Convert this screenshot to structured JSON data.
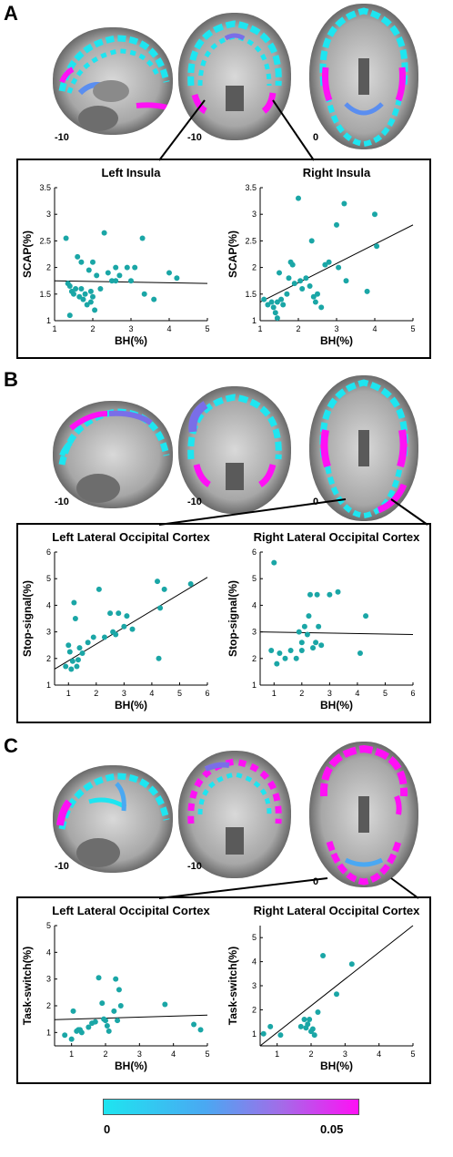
{
  "colors": {
    "point": "#1aa6a6",
    "cyan": "#1ee5f0",
    "magenta": "#ff10f5",
    "blue": "#5a8ef0"
  },
  "colorbar": {
    "min_label": "0",
    "max_label": "0.05"
  },
  "panels": [
    {
      "letter": "A",
      "slice_labels": [
        "-10",
        "-10",
        "0"
      ],
      "plots": [
        {
          "title": "Left Insula",
          "xlabel": "BH(%)",
          "ylabel": "SCAP(%)"
        },
        {
          "title": "Right Insula",
          "xlabel": "BH(%)",
          "ylabel": "SCAP(%)"
        }
      ]
    },
    {
      "letter": "B",
      "slice_labels": [
        "-10",
        "-10",
        "0"
      ],
      "plots": [
        {
          "title": "Left Lateral Occipital Cortex",
          "xlabel": "BH(%)",
          "ylabel": "Stop-signal(%)"
        },
        {
          "title": "Right Lateral Occipital Cortex",
          "xlabel": "BH(%)",
          "ylabel": "Stop-signal(%)"
        }
      ]
    },
    {
      "letter": "C",
      "slice_labels": [
        "-10",
        "-10",
        "0"
      ],
      "plots": [
        {
          "title": "Left Lateral Occipital Cortex",
          "xlabel": "BH(%)",
          "ylabel": "Task-switch(%)"
        },
        {
          "title": "Right Lateral Occipital Cortex",
          "xlabel": "BH(%)",
          "ylabel": "Task-switch(%)"
        }
      ]
    }
  ],
  "chart_data": [
    {
      "type": "scatter",
      "title": "Left Insula",
      "xlabel": "BH(%)",
      "ylabel": "SCAP(%)",
      "xlim": [
        1,
        5
      ],
      "ylim": [
        1,
        3.5
      ],
      "xticks": [
        "1",
        "2",
        "3",
        "4",
        "5"
      ],
      "yticks": [
        "1",
        "1.5",
        "2",
        "2.5",
        "3",
        "3.5"
      ],
      "x": [
        1.3,
        1.35,
        1.4,
        1.45,
        1.5,
        1.55,
        1.6,
        1.65,
        1.7,
        1.75,
        1.8,
        1.85,
        1.9,
        1.95,
        2.0,
        2.0,
        2.05,
        2.1,
        2.2,
        2.3,
        2.4,
        2.5,
        2.6,
        2.7,
        2.9,
        3.0,
        3.1,
        3.3,
        3.35,
        3.6,
        4.0,
        4.2,
        1.4,
        1.7,
        2.6,
        1.95
      ],
      "y": [
        2.55,
        1.7,
        1.1,
        1.55,
        1.5,
        1.6,
        2.2,
        1.45,
        1.6,
        1.4,
        1.5,
        1.3,
        1.95,
        1.55,
        2.1,
        1.45,
        1.2,
        1.85,
        1.6,
        2.65,
        1.9,
        1.75,
        2.0,
        1.85,
        2.0,
        1.75,
        2.0,
        2.55,
        1.5,
        1.4,
        1.9,
        1.8,
        1.65,
        2.1,
        1.75,
        1.35
      ],
      "fit": {
        "x": [
          1,
          5
        ],
        "y": [
          1.75,
          1.7
        ]
      }
    },
    {
      "type": "scatter",
      "title": "Right Insula",
      "xlabel": "BH(%)",
      "ylabel": "SCAP(%)",
      "xlim": [
        1,
        5
      ],
      "ylim": [
        1,
        3.5
      ],
      "xticks": [
        "1",
        "2",
        "3",
        "4",
        "5"
      ],
      "yticks": [
        "1",
        "1.5",
        "2",
        "2.5",
        "3",
        "3.5"
      ],
      "x": [
        1.1,
        1.2,
        1.3,
        1.35,
        1.4,
        1.45,
        1.5,
        1.6,
        1.7,
        1.75,
        1.8,
        1.85,
        1.9,
        2.0,
        2.05,
        2.1,
        2.2,
        2.3,
        2.4,
        2.45,
        2.5,
        2.6,
        2.7,
        2.8,
        3.0,
        3.05,
        3.2,
        3.25,
        3.8,
        4.0,
        4.05,
        1.45,
        1.55,
        2.35
      ],
      "y": [
        1.4,
        1.3,
        1.35,
        1.25,
        1.15,
        1.05,
        1.9,
        1.3,
        1.5,
        1.8,
        2.1,
        2.05,
        1.7,
        3.3,
        1.75,
        1.6,
        1.8,
        1.65,
        1.45,
        1.35,
        1.5,
        1.25,
        2.05,
        2.1,
        2.8,
        2.0,
        3.2,
        1.75,
        1.55,
        3.0,
        2.4,
        1.35,
        1.4,
        2.5
      ],
      "fit": {
        "x": [
          1,
          5
        ],
        "y": [
          1.35,
          2.8
        ]
      }
    },
    {
      "type": "scatter",
      "title": "Left Lateral Occipital Cortex",
      "xlabel": "BH(%)",
      "ylabel": "Stop-signal(%)",
      "xlim": [
        0.5,
        6
      ],
      "ylim": [
        1,
        6
      ],
      "xticks": [
        "1",
        "2",
        "3",
        "4",
        "5",
        "6"
      ],
      "yticks": [
        "1",
        "2",
        "3",
        "4",
        "5",
        "6"
      ],
      "x": [
        0.9,
        1.0,
        1.1,
        1.15,
        1.2,
        1.25,
        1.3,
        1.35,
        1.4,
        1.5,
        1.7,
        1.9,
        2.1,
        2.3,
        2.5,
        2.6,
        2.7,
        2.8,
        3.0,
        3.1,
        3.3,
        4.2,
        4.25,
        4.3,
        4.45,
        5.4,
        1.05
      ],
      "y": [
        1.7,
        2.5,
        1.6,
        1.9,
        4.1,
        3.5,
        1.7,
        1.95,
        2.4,
        2.2,
        2.6,
        2.8,
        4.6,
        2.8,
        3.7,
        3.0,
        2.9,
        3.7,
        3.2,
        3.6,
        3.1,
        4.9,
        2.0,
        3.9,
        4.6,
        4.8,
        2.25
      ],
      "fit": {
        "x": [
          0.5,
          6
        ],
        "y": [
          1.6,
          5.05
        ]
      }
    },
    {
      "type": "scatter",
      "title": "Right Lateral Occipital Cortex",
      "xlabel": "BH(%)",
      "ylabel": "Stop-signal(%)",
      "xlim": [
        0.5,
        6
      ],
      "ylim": [
        1,
        6
      ],
      "xticks": [
        "1",
        "2",
        "3",
        "4",
        "5",
        "6"
      ],
      "yticks": [
        "1",
        "2",
        "3",
        "4",
        "5",
        "6"
      ],
      "x": [
        0.9,
        1.0,
        1.1,
        1.2,
        1.4,
        1.6,
        1.8,
        1.9,
        2.0,
        2.1,
        2.2,
        2.25,
        2.3,
        2.4,
        2.5,
        2.55,
        2.6,
        2.7,
        3.0,
        3.3,
        4.1,
        4.3,
        2.0
      ],
      "y": [
        2.3,
        5.6,
        1.8,
        2.2,
        2.0,
        2.3,
        2.0,
        3.0,
        2.6,
        3.2,
        2.9,
        3.6,
        4.4,
        2.4,
        2.6,
        4.4,
        3.2,
        2.5,
        4.4,
        4.5,
        2.2,
        3.6,
        2.3
      ],
      "fit": {
        "x": [
          0.5,
          6
        ],
        "y": [
          3.0,
          2.9
        ]
      }
    },
    {
      "type": "scatter",
      "title": "Left Lateral Occipital Cortex",
      "xlabel": "BH(%)",
      "ylabel": "Task-switch(%)",
      "xlim": [
        0.5,
        5
      ],
      "ylim": [
        0.5,
        5
      ],
      "xticks": [
        "1",
        "2",
        "3",
        "4",
        "5"
      ],
      "yticks": [
        "1",
        "2",
        "3",
        "4",
        "5"
      ],
      "x": [
        0.8,
        1.0,
        1.05,
        1.15,
        1.2,
        1.3,
        1.5,
        1.6,
        1.7,
        1.8,
        1.9,
        1.95,
        2.0,
        2.05,
        2.1,
        2.25,
        2.3,
        2.35,
        2.4,
        2.45,
        3.75,
        4.6,
        4.8,
        1.25
      ],
      "y": [
        0.9,
        0.75,
        1.8,
        1.05,
        1.1,
        1.0,
        1.2,
        1.35,
        1.4,
        3.05,
        2.1,
        1.5,
        1.45,
        1.25,
        1.05,
        1.8,
        3.0,
        1.45,
        2.6,
        2.0,
        2.05,
        1.3,
        1.1,
        1.1
      ],
      "fit": {
        "x": [
          0.5,
          5
        ],
        "y": [
          1.48,
          1.65
        ]
      }
    },
    {
      "type": "scatter",
      "title": "Right Lateral Occipital Cortex",
      "xlabel": "BH(%)",
      "ylabel": "Task-switch(%)",
      "xlim": [
        0.5,
        5
      ],
      "ylim": [
        0.5,
        5.5
      ],
      "xticks": [
        "1",
        "2",
        "3",
        "4",
        "5"
      ],
      "yticks": [
        "1",
        "2",
        "3",
        "4",
        "5"
      ],
      "x": [
        0.6,
        0.8,
        1.1,
        1.7,
        1.8,
        1.9,
        1.95,
        2.0,
        2.05,
        2.1,
        2.2,
        2.35,
        2.75,
        3.2,
        1.85
      ],
      "y": [
        1.0,
        1.3,
        0.95,
        1.3,
        1.6,
        1.4,
        1.6,
        1.1,
        1.2,
        0.95,
        1.9,
        4.25,
        2.65,
        3.9,
        1.25
      ],
      "fit": {
        "x": [
          0.5,
          5
        ],
        "y": [
          0.5,
          5.5
        ]
      }
    }
  ]
}
